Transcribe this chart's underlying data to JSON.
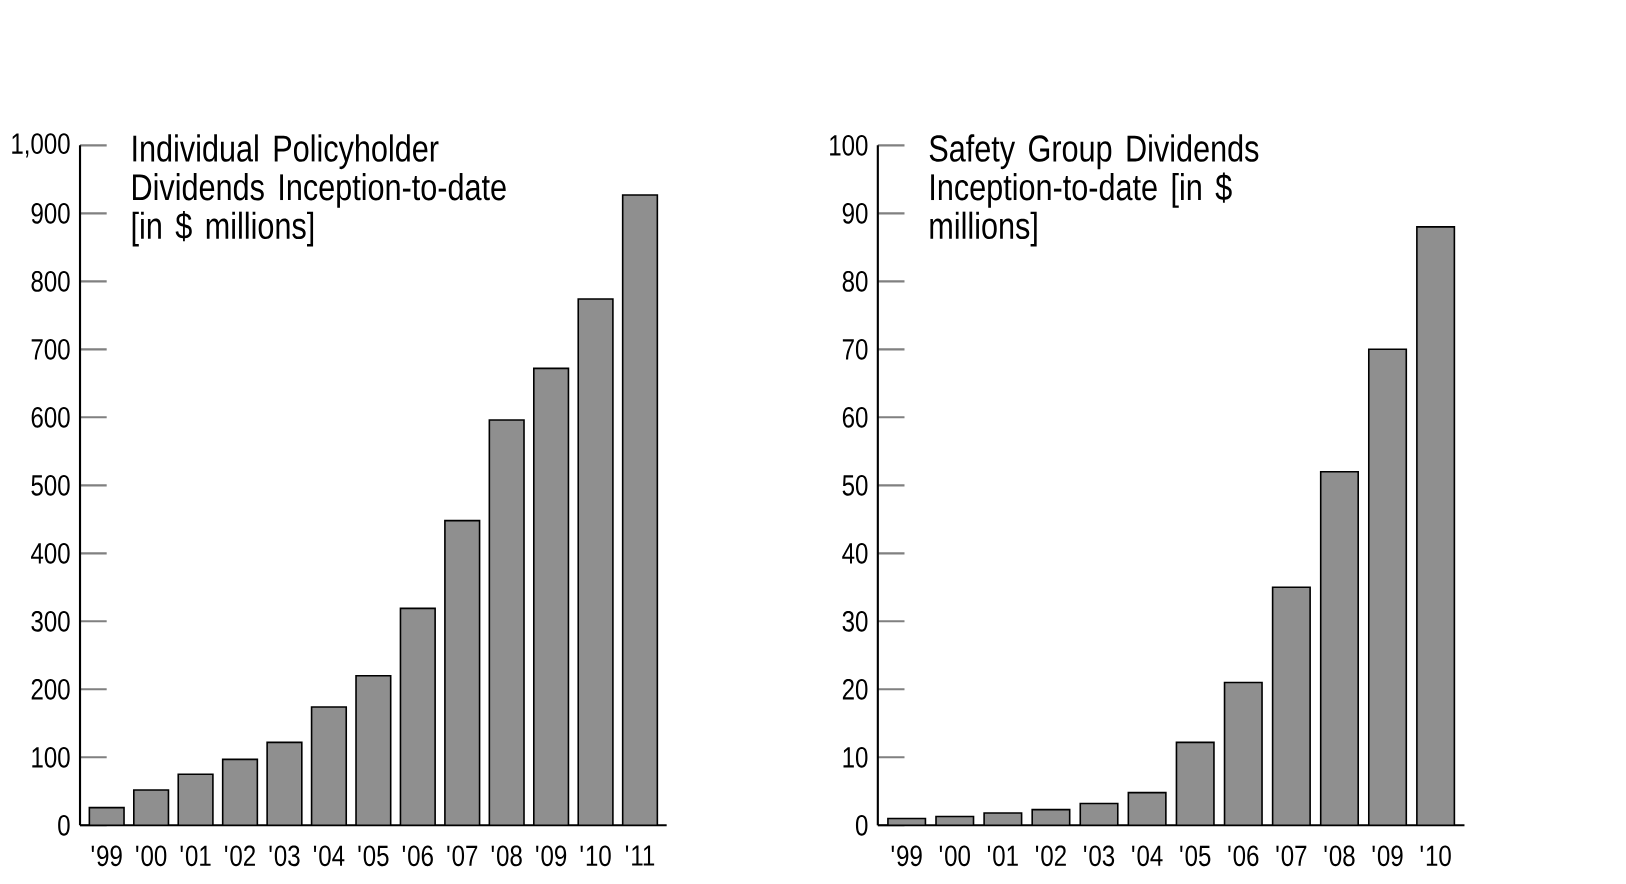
{
  "chart_data": [
    {
      "type": "bar",
      "title": "Individual Policyholder Dividends Inception-to-date [in $ millions]",
      "categories": [
        "'99",
        "'00",
        "'01",
        "'02",
        "'03",
        "'04",
        "'05",
        "'06",
        "'07",
        "'08",
        "'09",
        "'10",
        "'11"
      ],
      "values": [
        26,
        52,
        75,
        97,
        122,
        174,
        220,
        319,
        448,
        596,
        672,
        774,
        927
      ],
      "color": "#8f8f8f",
      "ylim": [
        0,
        1000
      ],
      "yticks": [
        0,
        100,
        200,
        300,
        400,
        500,
        600,
        700,
        800,
        900,
        {
          "value": 1000,
          "label": "1,000"
        }
      ],
      "grid": false
    },
    {
      "type": "bar",
      "title": "Safety Group Dividends Inception-to-date [in $ millions]",
      "categories": [
        "'99",
        "'00",
        "'01",
        "'02",
        "'03",
        "'04",
        "'05",
        "'06",
        "'07",
        "'08",
        "'09",
        "'10"
      ],
      "values": [
        1.0,
        1.3,
        1.8,
        2.3,
        3.2,
        4.8,
        12.2,
        21,
        35,
        52,
        70,
        88
      ],
      "color": "#8f8f8f",
      "ylim": [
        0,
        100
      ],
      "yticks": [
        0,
        10,
        20,
        30,
        40,
        50,
        60,
        70,
        80,
        90,
        100
      ],
      "grid": false
    }
  ]
}
